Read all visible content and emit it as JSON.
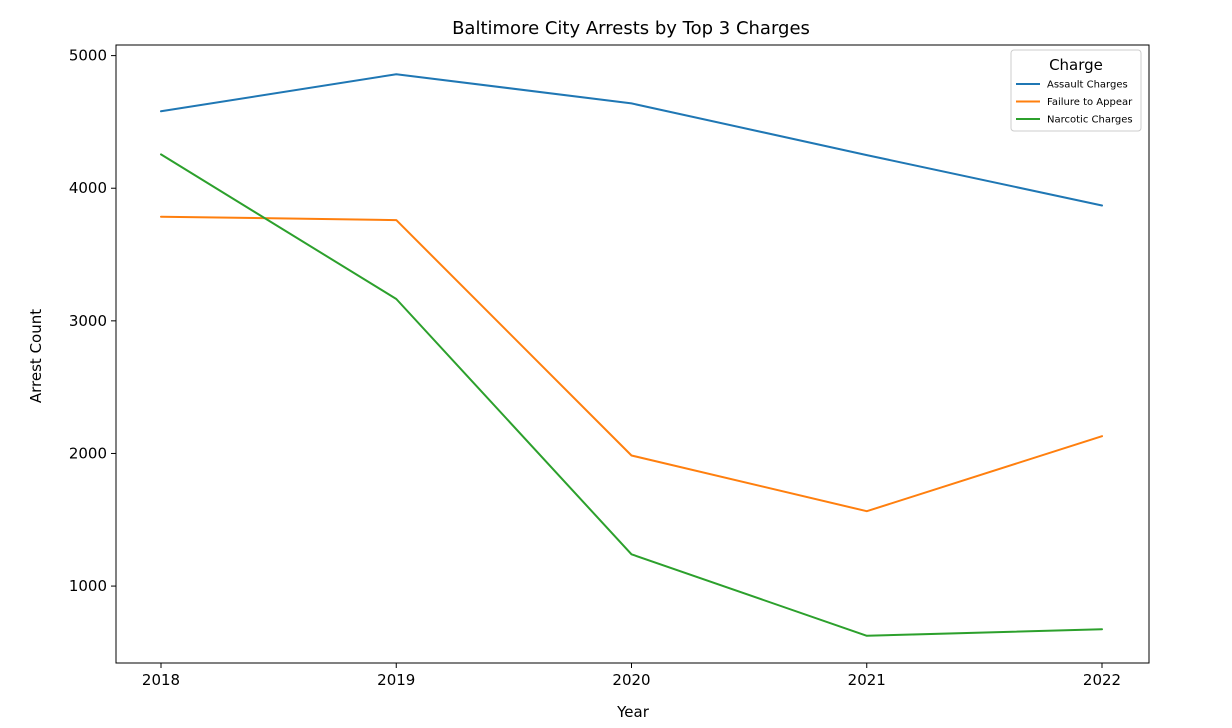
{
  "chart_data": {
    "type": "line",
    "title": "Baltimore City Arrests by Top 3 Charges",
    "xlabel": "Year",
    "ylabel": "Arrest Count",
    "x": [
      "2018",
      "2019",
      "2020",
      "2021",
      "2022"
    ],
    "yticks": [
      1000,
      2000,
      3000,
      4000,
      5000
    ],
    "ylim": [
      420,
      5080
    ],
    "grid": false,
    "legend": {
      "title": "Charge",
      "placement": "top-right"
    },
    "series": [
      {
        "name": "Assault Charges",
        "color": "#1f77b4",
        "values": [
          4580,
          4860,
          4640,
          4250,
          3870
        ]
      },
      {
        "name": "Failure to Appear",
        "color": "#ff7f0e",
        "values": [
          3785,
          3760,
          1985,
          1565,
          2130
        ]
      },
      {
        "name": "Narcotic Charges",
        "color": "#2ca02c",
        "values": [
          4255,
          3165,
          1240,
          625,
          675
        ]
      }
    ]
  }
}
